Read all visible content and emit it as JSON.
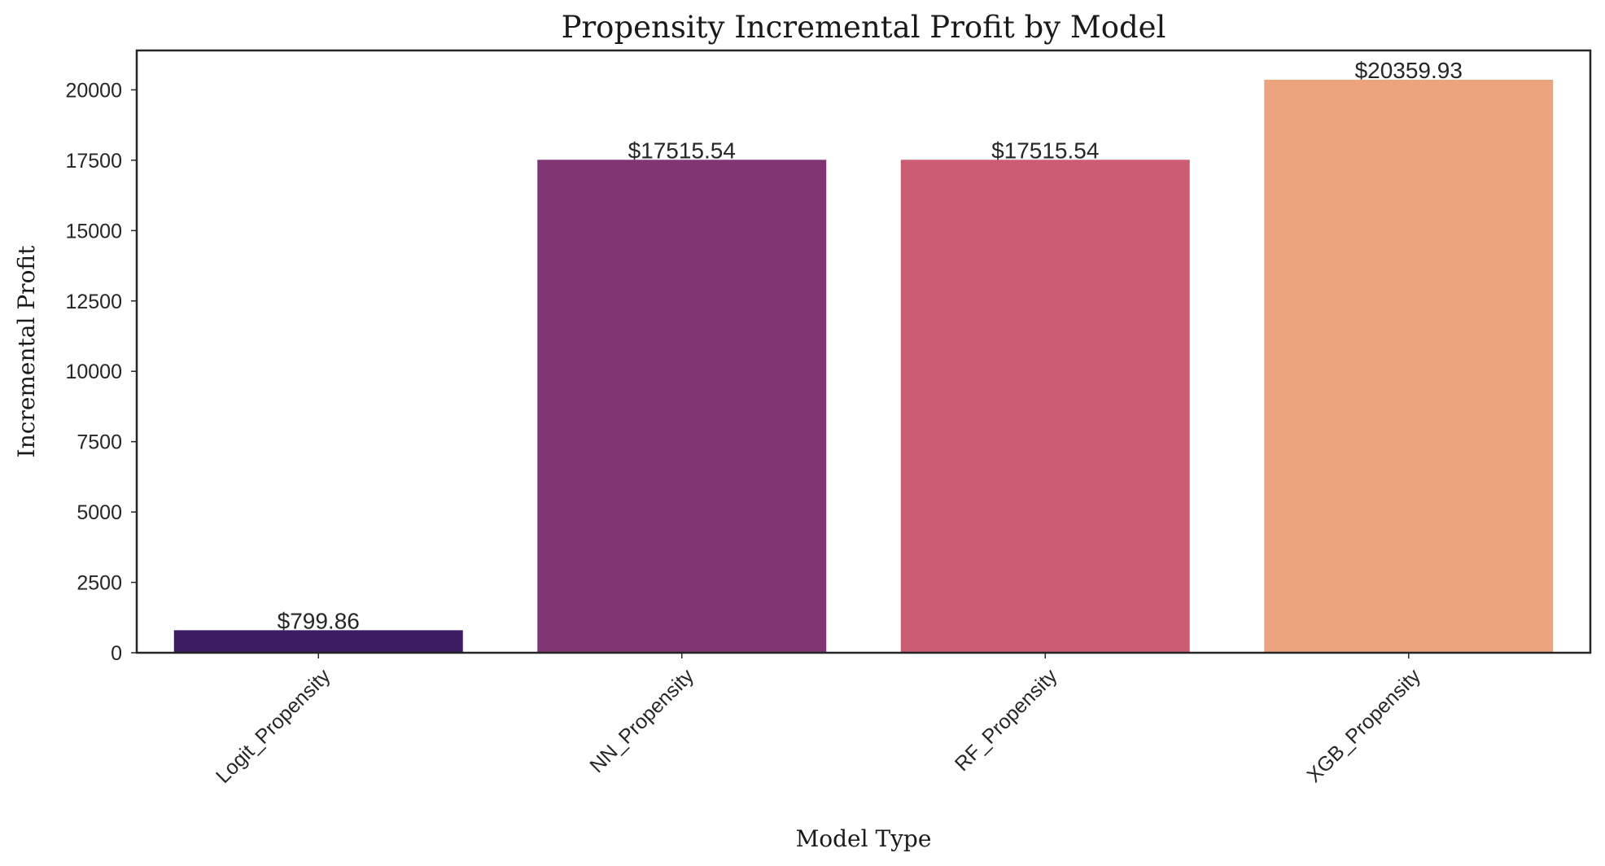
{
  "chart_data": {
    "type": "bar",
    "title": "Propensity Incremental Profit by Model",
    "xlabel": "Model Type",
    "ylabel": "Incremental Profit",
    "categories": [
      "Logit_Propensity",
      "NN_Propensity",
      "RF_Propensity",
      "XGB_Propensity"
    ],
    "values": [
      799.86,
      17515.54,
      17515.54,
      20359.93
    ],
    "value_labels": [
      "$799.86",
      "$17515.54",
      "$17515.54",
      "$20359.93"
    ],
    "colors": [
      "#3b1b62",
      "#7f3673",
      "#cb5c73",
      "#eca47e"
    ],
    "ylim": [
      0,
      21400
    ],
    "yticks": [
      0,
      2500,
      5000,
      7500,
      10000,
      12500,
      15000,
      17500,
      20000
    ],
    "grid": false,
    "legend": "none"
  }
}
